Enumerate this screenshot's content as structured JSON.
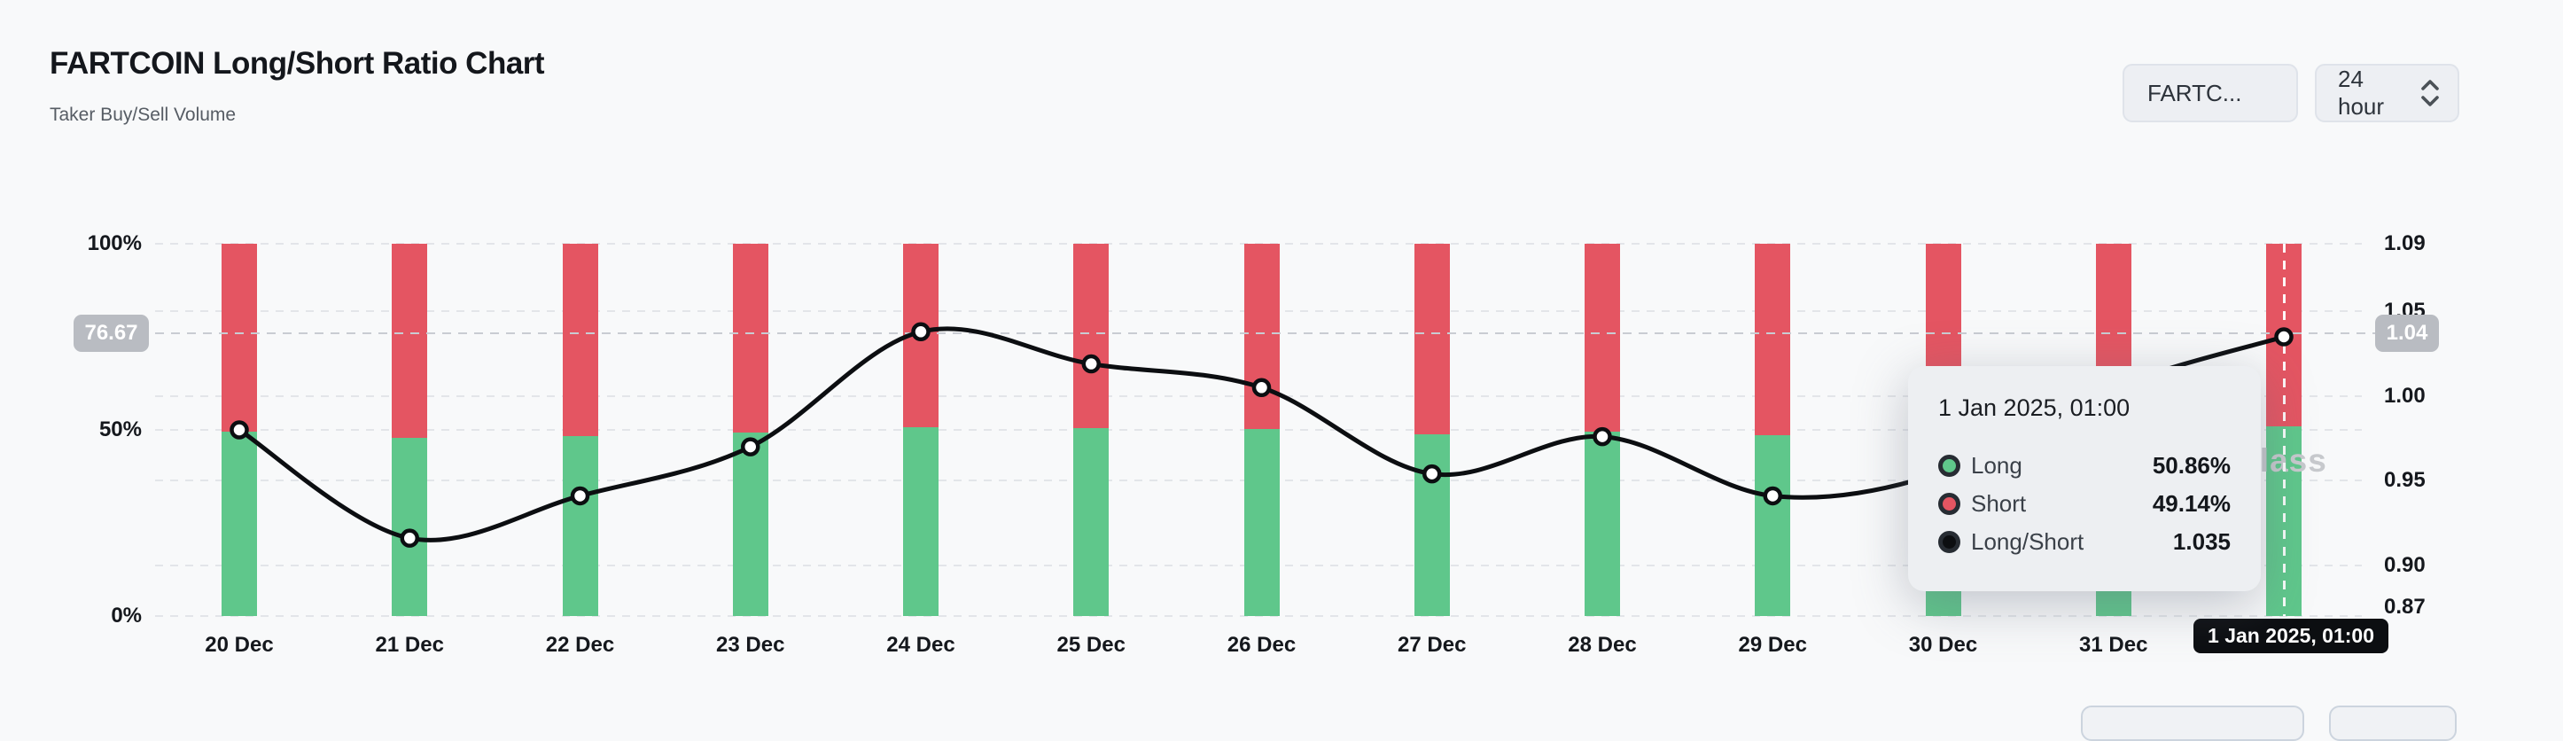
{
  "header": {
    "title": "FARTCOIN Long/Short Ratio Chart",
    "subtitle": "Taker Buy/Sell Volume"
  },
  "controls": {
    "symbol_select_label": "FARTC...",
    "interval_select_label": "24 hour"
  },
  "watermark_text": "Coinglass",
  "chart_data": {
    "type": "bar",
    "subtype": "stacked-percent-bars-with-ratio-line",
    "categories": [
      "20 Dec",
      "21 Dec",
      "22 Dec",
      "23 Dec",
      "24 Dec",
      "25 Dec",
      "26 Dec",
      "27 Dec",
      "28 Dec",
      "29 Dec",
      "30 Dec",
      "31 Dec",
      "1 Jan 2025, 01:00"
    ],
    "series": [
      {
        "name": "Long",
        "unit": "%",
        "values": [
          49.5,
          47.9,
          48.3,
          49.3,
          50.7,
          50.5,
          50.2,
          48.8,
          49.5,
          48.6,
          48.8,
          50.1,
          50.86
        ]
      },
      {
        "name": "Short",
        "unit": "%",
        "values": [
          50.5,
          52.1,
          51.7,
          50.7,
          49.3,
          49.5,
          49.8,
          51.2,
          50.5,
          51.4,
          51.2,
          49.9,
          49.14
        ]
      },
      {
        "name": "Long/Short",
        "unit": "ratio",
        "values": [
          0.98,
          0.916,
          0.941,
          0.97,
          1.038,
          1.019,
          1.005,
          0.954,
          0.976,
          0.941,
          0.955,
          1.005,
          1.035
        ]
      }
    ],
    "left_axis": {
      "ticks": [
        {
          "label": "100%",
          "value": 100
        },
        {
          "label": "50%",
          "value": 50
        },
        {
          "label": "0%",
          "value": 0
        }
      ],
      "min": 0,
      "max": 100
    },
    "right_axis": {
      "ticks": [
        {
          "label": "1.09",
          "value": 1.09
        },
        {
          "label": "1.05",
          "value": 1.05
        },
        {
          "label": "1.00",
          "value": 1.0
        },
        {
          "label": "0.95",
          "value": 0.95
        },
        {
          "label": "0.90",
          "value": 0.9
        },
        {
          "label": "0.87",
          "value": 0.87
        }
      ],
      "min": 0.87,
      "max": 1.09
    },
    "grid": true,
    "legend_position": "none",
    "crosshair": {
      "left_badge": "76.67",
      "right_badge": "1.04",
      "ratio_value": 1.037,
      "hover_index": 12,
      "x_axis_badge": "1 Jan 2025, 01:00"
    },
    "colors": {
      "long": "#5fc78b",
      "short": "#e45562",
      "ratio_line": "#0c0e11",
      "dot_fill": "#ffffff",
      "badge_gray": "#b9bcc2",
      "x_badge_bg": "#0c0e11"
    }
  },
  "tooltip": {
    "title": "1 Jan 2025, 01:00",
    "rows": [
      {
        "label": "Long",
        "value": "50.86%",
        "marker_color": "#5fc78b"
      },
      {
        "label": "Short",
        "value": "49.14%",
        "marker_color": "#e45562"
      },
      {
        "label": "Long/Short",
        "value": "1.035",
        "marker_color": "#0c0e11"
      }
    ]
  }
}
